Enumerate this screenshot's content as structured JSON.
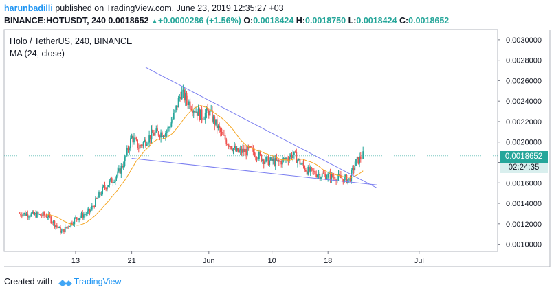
{
  "header": {
    "user": "harunbadilli",
    "published": " published on TradingView.com, June 23, 2019 12:35:27 +03",
    "symbol": "BINANCE:HOTUSDT, 240",
    "last": "0.0018652",
    "change": "+0.0000286 (+1.56%)",
    "o_label": "O:",
    "o": "0.0018424",
    "h_label": "H:",
    "h": "0.0018750",
    "l_label": "L:",
    "l": "0.0018424",
    "c_label": "C:",
    "c": "0.0018652"
  },
  "legend": {
    "title": "Holo / TetherUS, 240, BINANCE",
    "indicator": "MA (24, close)"
  },
  "price_tag": {
    "price": "0.0018652",
    "countdown": "02:24:35"
  },
  "footer": {
    "created": "Created with",
    "brand": "TradingView"
  },
  "colors": {
    "up": "#26a69a",
    "down": "#ef5350",
    "ma": "#f5a623",
    "trendline": "#7b7ff0",
    "brand": "#2196f3"
  },
  "chart_data": {
    "type": "candlestick",
    "x_ticks": [
      "13",
      "21",
      "Jun",
      "10",
      "18",
      "Jul"
    ],
    "y_ticks": [
      "0.0010000",
      "0.0012000",
      "0.0014000",
      "0.0016000",
      "0.0018000",
      "0.0020000",
      "0.0022000",
      "0.0024000",
      "0.0026000",
      "0.0028000",
      "0.0030000"
    ],
    "ylim": [
      0.00093,
      0.0031
    ],
    "close_series": [
      {
        "date": "2019-05-05",
        "close": 0.0013
      },
      {
        "date": "2019-05-09",
        "close": 0.00128
      },
      {
        "date": "2019-05-11",
        "close": 0.00112
      },
      {
        "date": "2019-05-13",
        "close": 0.00125
      },
      {
        "date": "2019-05-15",
        "close": 0.00132
      },
      {
        "date": "2019-05-17",
        "close": 0.00155
      },
      {
        "date": "2019-05-19",
        "close": 0.00168
      },
      {
        "date": "2019-05-20",
        "close": 0.00182
      },
      {
        "date": "2019-05-21",
        "close": 0.00205
      },
      {
        "date": "2019-05-22",
        "close": 0.00195
      },
      {
        "date": "2019-05-24",
        "close": 0.00208
      },
      {
        "date": "2019-05-26",
        "close": 0.0021
      },
      {
        "date": "2019-05-27",
        "close": 0.00225
      },
      {
        "date": "2019-05-28",
        "close": 0.00248
      },
      {
        "date": "2019-05-30",
        "close": 0.00232
      },
      {
        "date": "2019-05-31",
        "close": 0.00225
      },
      {
        "date": "2019-06-01",
        "close": 0.0023
      },
      {
        "date": "2019-06-03",
        "close": 0.00205
      },
      {
        "date": "2019-06-05",
        "close": 0.0019
      },
      {
        "date": "2019-06-07",
        "close": 0.00192
      },
      {
        "date": "2019-06-09",
        "close": 0.00182
      },
      {
        "date": "2019-06-11",
        "close": 0.0018
      },
      {
        "date": "2019-06-13",
        "close": 0.00188
      },
      {
        "date": "2019-06-15",
        "close": 0.00172
      },
      {
        "date": "2019-06-17",
        "close": 0.00168
      },
      {
        "date": "2019-06-19",
        "close": 0.00166
      },
      {
        "date": "2019-06-21",
        "close": 0.00163
      },
      {
        "date": "2019-06-22",
        "close": 0.0018
      },
      {
        "date": "2019-06-23",
        "close": 0.00187
      }
    ],
    "ma_period": 24,
    "trendlines": [
      {
        "start": {
          "date": "2019-05-23",
          "price": 0.00273
        },
        "end": {
          "date": "2019-06-25",
          "price": 0.00155
        }
      },
      {
        "start": {
          "date": "2019-05-21",
          "price": 0.00184
        },
        "end": {
          "date": "2019-06-25",
          "price": 0.00158
        }
      }
    ],
    "last_price": 0.0018652,
    "grid": false
  }
}
